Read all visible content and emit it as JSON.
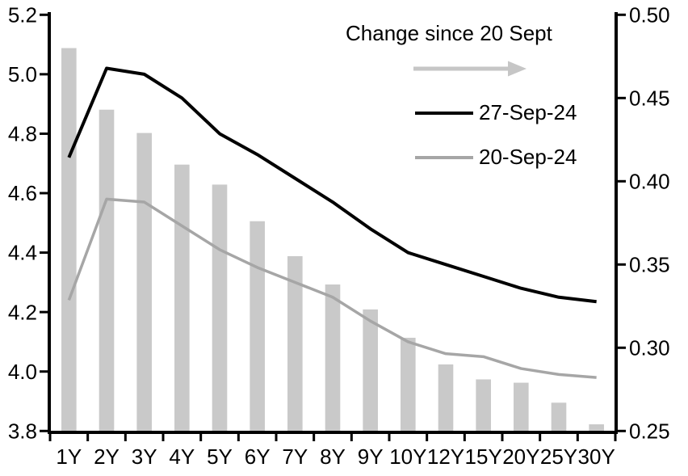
{
  "chart_data": {
    "type": "combo-bar-line",
    "categories": [
      "1Y",
      "2Y",
      "3Y",
      "4Y",
      "5Y",
      "6Y",
      "7Y",
      "8Y",
      "9Y",
      "10Y",
      "12Y",
      "15Y",
      "20Y",
      "25Y",
      "30Y"
    ],
    "series": [
      {
        "name": "Change since 20 Sept",
        "type": "bar",
        "axis": "right",
        "color": "#c9c9c9",
        "values": [
          0.48,
          0.443,
          0.429,
          0.41,
          0.398,
          0.376,
          0.355,
          0.338,
          0.323,
          0.306,
          0.29,
          0.281,
          0.279,
          0.267,
          0.254
        ]
      },
      {
        "name": "27-Sep-24",
        "type": "line",
        "axis": "left",
        "color": "#000000",
        "values": [
          4.72,
          5.02,
          5.0,
          4.92,
          4.8,
          4.73,
          4.65,
          4.57,
          4.48,
          4.4,
          4.36,
          4.32,
          4.28,
          4.25,
          4.235
        ]
      },
      {
        "name": "20-Sep-24",
        "type": "line",
        "axis": "left",
        "color": "#a6a6a6",
        "values": [
          4.24,
          4.58,
          4.57,
          4.49,
          4.41,
          4.35,
          4.3,
          4.25,
          4.17,
          4.1,
          4.06,
          4.05,
          4.01,
          3.99,
          3.98
        ]
      }
    ],
    "left_axis": {
      "min": 3.8,
      "max": 5.2,
      "tick_labels": [
        "5.2",
        "5.0",
        "4.8",
        "4.6",
        "4.4",
        "4.2",
        "4.0",
        "3.8"
      ]
    },
    "right_axis": {
      "min": 0.25,
      "max": 0.5,
      "tick_labels": [
        "0.50",
        "0.45",
        "0.40",
        "0.35",
        "0.30",
        "0.25"
      ]
    },
    "legend": {
      "position": "top-right",
      "arrow_label": "Change since 20 Sept",
      "arrow_color": "#c6c6c6",
      "items": [
        {
          "label": "27-Sep-24",
          "color": "#000000"
        },
        {
          "label": "20-Sep-24",
          "color": "#a6a6a6"
        }
      ]
    },
    "grid": false,
    "title": "",
    "xlabel": "",
    "ylabel": ""
  }
}
